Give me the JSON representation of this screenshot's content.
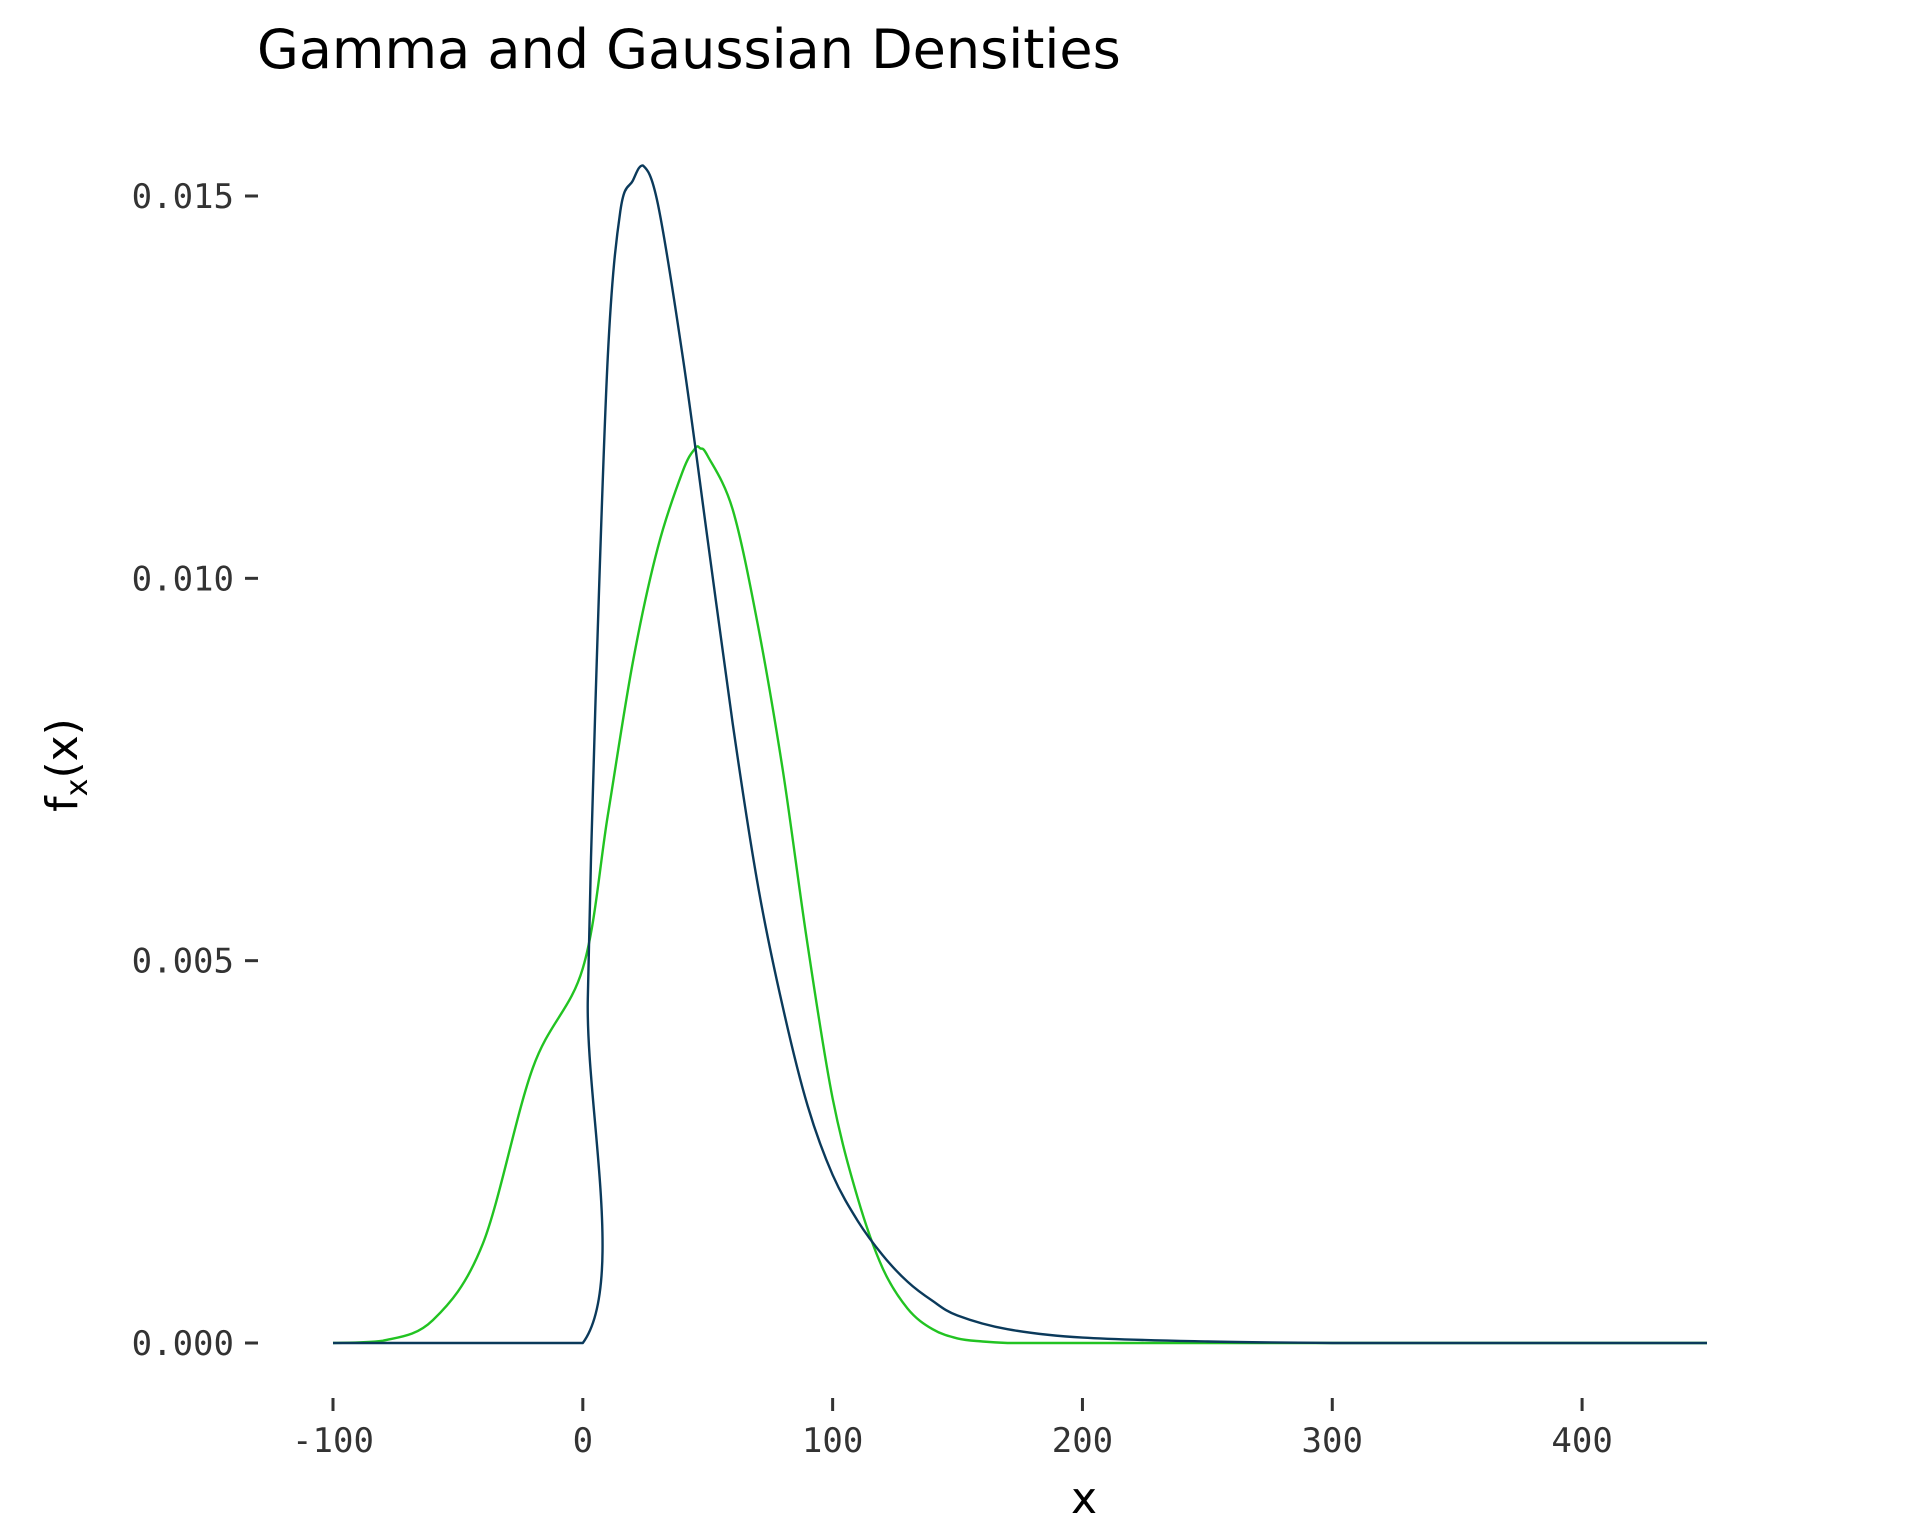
{
  "chart_data": {
    "type": "line",
    "title": "Gamma and Gaussian Densities",
    "xlabel": "x",
    "ylabel": "f",
    "ylabel_sub": "x",
    "ylabel_tail": "(x)",
    "xlim": [
      -100,
      450
    ],
    "ylim": [
      0,
      0.015
    ],
    "x_ticks": [
      -100,
      0,
      100,
      200,
      300,
      400
    ],
    "x_tick_labels": [
      "-100",
      "0",
      "100",
      "200",
      "300",
      "400"
    ],
    "y_ticks": [
      0,
      0.005,
      0.01,
      0.015
    ],
    "y_tick_labels": [
      "0.000",
      "0.005",
      "0.010",
      "0.015"
    ],
    "grid": false,
    "series": [
      {
        "color": "#22c322",
        "x": [
          -100,
          -80,
          -60,
          -40,
          -20,
          0,
          10,
          20,
          30,
          40,
          45,
          47,
          50,
          60,
          70,
          80,
          90,
          100,
          110,
          120,
          130,
          140,
          150,
          160,
          170,
          180,
          200,
          250,
          300,
          350,
          400,
          450
        ],
        "y": [
          0.0,
          3e-05,
          0.0003,
          0.0013,
          0.0036,
          0.0049,
          0.0069,
          0.0089,
          0.0104,
          0.0114,
          0.0117,
          0.0117,
          0.0116,
          0.0109,
          0.0094,
          0.0075,
          0.0052,
          0.0032,
          0.0019,
          0.00098,
          0.00045,
          0.00018,
          6e-05,
          2e-05,
          0.0,
          0.0,
          0.0,
          0.0,
          0.0,
          0.0,
          0.0,
          0.0
        ]
      },
      {
        "color": "#0b3a5b",
        "x": [
          -100,
          0,
          2,
          5,
          10,
          15,
          20,
          24,
          30,
          40,
          50,
          60,
          70,
          80,
          90,
          100,
          110,
          120,
          130,
          140,
          150,
          170,
          200,
          250,
          300,
          350,
          400,
          450
        ],
        "y": [
          0.0,
          0.0,
          0.0045,
          0.0083,
          0.0129,
          0.0148,
          0.0152,
          0.0154,
          0.0149,
          0.0129,
          0.0105,
          0.0081,
          0.006,
          0.0044,
          0.0031,
          0.0022,
          0.0016,
          0.00115,
          0.0008,
          0.00055,
          0.00036,
          0.00018,
          7e-05,
          2e-05,
          0.0,
          0.0,
          0.0,
          0.0
        ]
      }
    ]
  }
}
